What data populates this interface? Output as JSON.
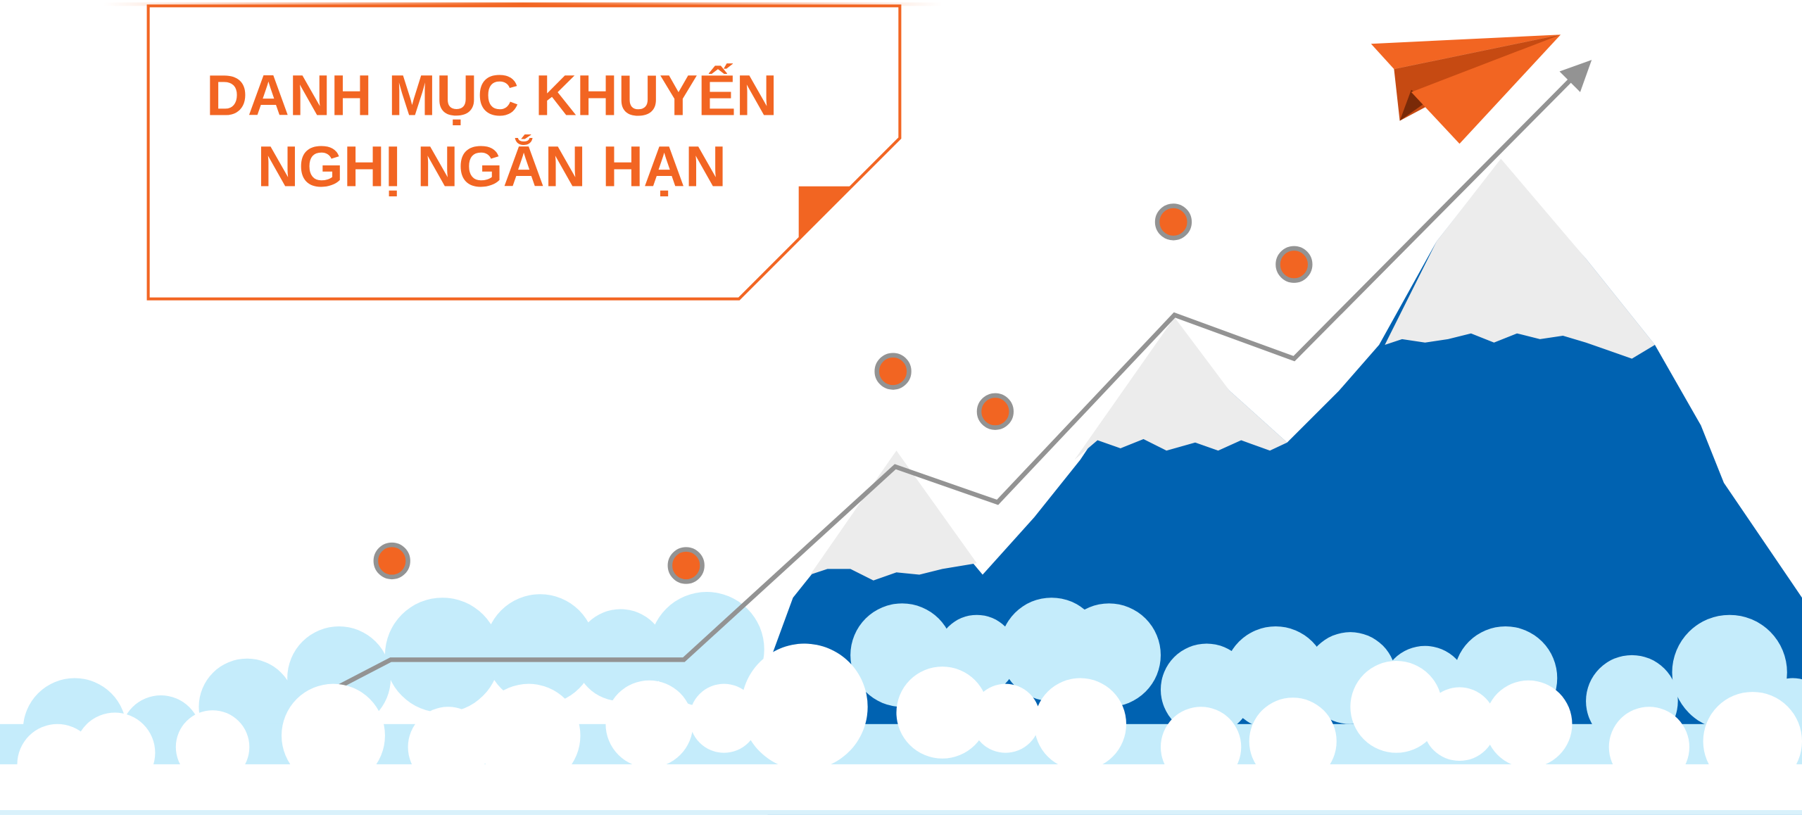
{
  "banner": {
    "title_lines": [
      "DANH MỤC KHUYẾN",
      "NGHỊ NGẮN HẠN"
    ]
  }
}
